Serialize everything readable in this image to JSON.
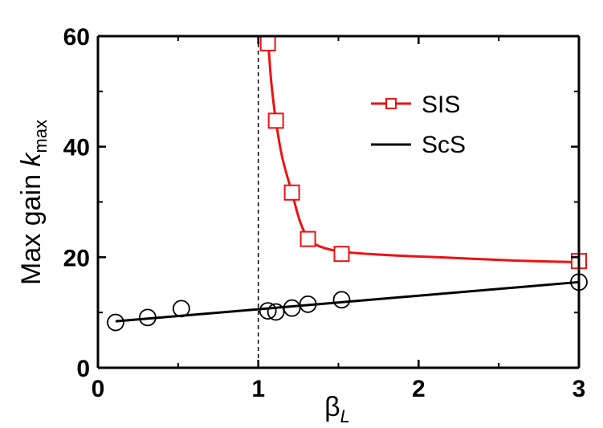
{
  "chart_data": {
    "type": "line",
    "xlabel": "β",
    "xlabel_sub": "L",
    "ylabel": "Max gain ",
    "ylabel_k": "k",
    "ylabel_sub": "max",
    "xlim": [
      0,
      3
    ],
    "ylim": [
      0,
      60
    ],
    "xticks": [
      "0",
      "1",
      "2",
      "3"
    ],
    "yticks": [
      "0",
      "20",
      "40",
      "60"
    ],
    "grid": false,
    "legend_position": "top-right",
    "reference_line": {
      "x": 1,
      "style": "dashed"
    },
    "series": [
      {
        "name": "SIS",
        "color": "#ee1111",
        "marker": "square",
        "points": [
          {
            "x": 1.06,
            "y": 58.7
          },
          {
            "x": 1.11,
            "y": 44.7
          },
          {
            "x": 1.21,
            "y": 31.7
          },
          {
            "x": 1.31,
            "y": 23.3
          },
          {
            "x": 1.52,
            "y": 20.6
          },
          {
            "x": 3.0,
            "y": 19.3
          }
        ],
        "fit": [
          {
            "x": 1.06,
            "y": 60.0
          },
          {
            "x": 1.08,
            "y": 52.0
          },
          {
            "x": 1.11,
            "y": 44.7
          },
          {
            "x": 1.15,
            "y": 38.0
          },
          {
            "x": 1.21,
            "y": 31.7
          },
          {
            "x": 1.26,
            "y": 26.5
          },
          {
            "x": 1.31,
            "y": 23.5
          },
          {
            "x": 1.38,
            "y": 22.0
          },
          {
            "x": 1.52,
            "y": 21.0
          },
          {
            "x": 1.8,
            "y": 20.4
          },
          {
            "x": 2.2,
            "y": 19.9
          },
          {
            "x": 2.6,
            "y": 19.4
          },
          {
            "x": 3.0,
            "y": 19.1
          }
        ]
      },
      {
        "name": "ScS",
        "color": "#000000",
        "marker": "circle",
        "points": [
          {
            "x": 0.11,
            "y": 8.2
          },
          {
            "x": 0.31,
            "y": 9.1
          },
          {
            "x": 0.52,
            "y": 10.7
          },
          {
            "x": 1.06,
            "y": 10.3
          },
          {
            "x": 1.11,
            "y": 10.1
          },
          {
            "x": 1.21,
            "y": 10.8
          },
          {
            "x": 1.31,
            "y": 11.5
          },
          {
            "x": 1.52,
            "y": 12.3
          },
          {
            "x": 3.0,
            "y": 15.5
          }
        ],
        "fit": [
          {
            "x": 0.11,
            "y": 8.4
          },
          {
            "x": 3.0,
            "y": 15.5
          }
        ]
      }
    ]
  }
}
